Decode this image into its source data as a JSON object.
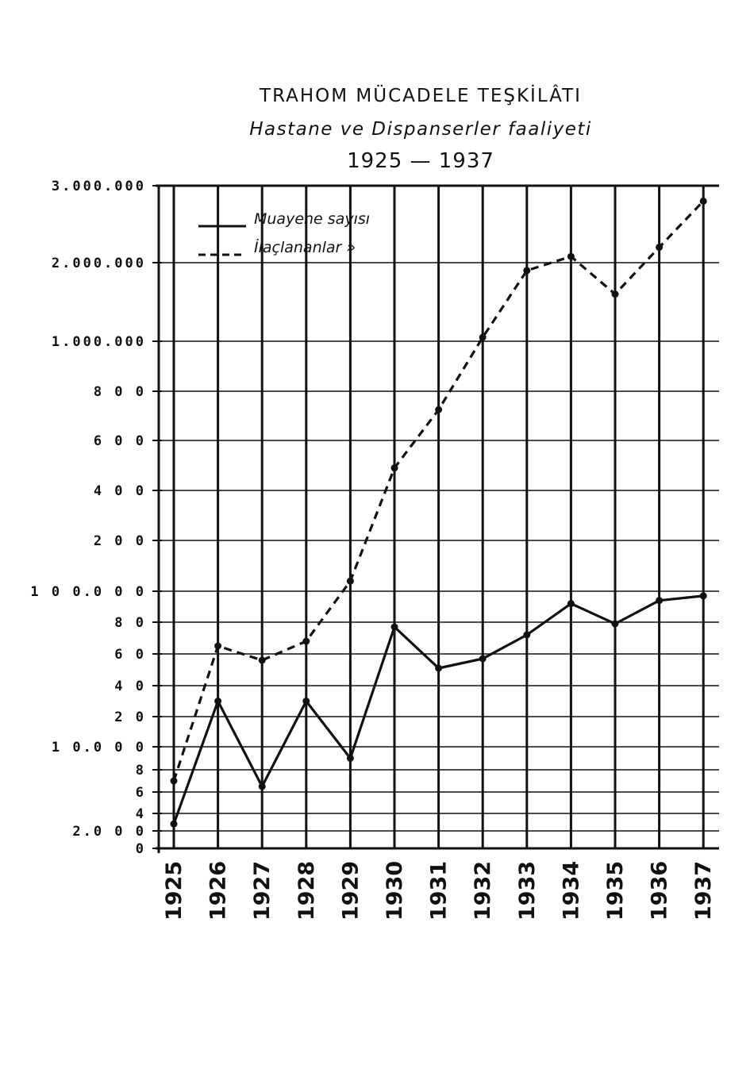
{
  "chart_data": {
    "type": "line",
    "title": "TRAHOM MÜCADELE TEŞKİLÂTI",
    "subtitle": "Hastane ve Dispanserler faaliyeti",
    "period": "1925 — 1937",
    "x": [
      "1925",
      "1926",
      "1927",
      "1928",
      "1929",
      "1930",
      "1931",
      "1932",
      "1933",
      "1934",
      "1935",
      "1936",
      "1937"
    ],
    "y_ticks": [
      {
        "label": "3.000.000",
        "value": 3000000
      },
      {
        "label": "2.000.000",
        "value": 2000000
      },
      {
        "label": "1.000.000",
        "value": 1000000
      },
      {
        "label": "8 0 0",
        "value": 800000
      },
      {
        "label": "6 0 0",
        "value": 600000
      },
      {
        "label": "4 0 0",
        "value": 400000
      },
      {
        "label": "2 0 0",
        "value": 200000
      },
      {
        "label": "1 0 0.0 0 0",
        "value": 100000
      },
      {
        "label": "8 0",
        "value": 80000
      },
      {
        "label": "6 0",
        "value": 60000
      },
      {
        "label": "4 0",
        "value": 40000
      },
      {
        "label": "2 0",
        "value": 20000
      },
      {
        "label": "1 0.0 0 0",
        "value": 10000
      },
      {
        "label": "8",
        "value": 8000
      },
      {
        "label": "6",
        "value": 6000
      },
      {
        "label": "4",
        "value": 4000
      },
      {
        "label": "2.0 0 0",
        "value": 2000
      },
      {
        "label": "0",
        "value": 0
      }
    ],
    "series": [
      {
        "name": "Muayene sayısı",
        "style": "solid",
        "values": [
          2800,
          30000,
          6500,
          30000,
          9000,
          77000,
          51000,
          57000,
          72000,
          92000,
          79000,
          94000,
          97000
        ]
      },
      {
        "name": "İlaçlananlar »",
        "style": "dashed",
        "values": [
          7000,
          65000,
          56000,
          68000,
          120000,
          490000,
          725000,
          1050000,
          1900000,
          2080000,
          1600000,
          2200000,
          2800000
        ]
      }
    ],
    "grid": true,
    "legend": "top-left",
    "colors": {
      "line": "#111111",
      "background": "#ffffff"
    }
  }
}
